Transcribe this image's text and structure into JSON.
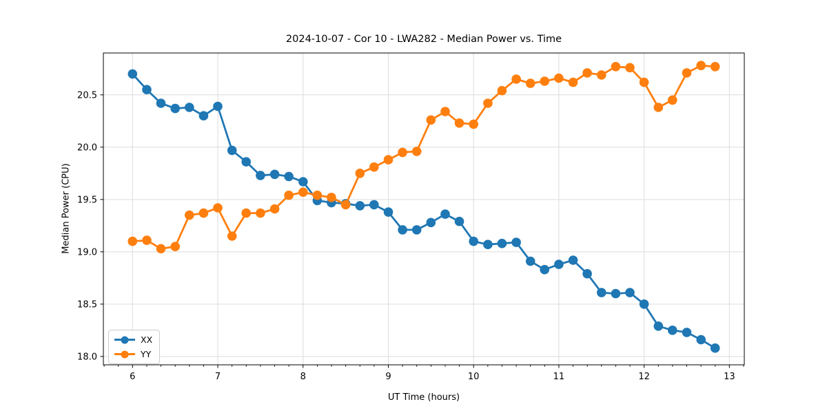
{
  "chart_data": {
    "type": "line",
    "title": "2024-10-07 - Cor 10 - LWA282 - Median Power vs. Time",
    "xlabel": "UT Time (hours)",
    "ylabel": "Median Power (CPU)",
    "xlim": [
      5.658,
      13.175
    ],
    "ylim": [
      17.92,
      20.9
    ],
    "x_ticks": [
      6,
      7,
      8,
      9,
      10,
      11,
      12,
      13
    ],
    "x_tick_labels": [
      "6",
      "7",
      "8",
      "9",
      "10",
      "11",
      "12",
      "13"
    ],
    "y_ticks": [
      18.0,
      18.5,
      19.0,
      19.5,
      20.0,
      20.5
    ],
    "y_tick_labels": [
      "18.0",
      "18.5",
      "19.0",
      "19.5",
      "20.0",
      "20.5"
    ],
    "x_minor_step": 0.16667,
    "grid": true,
    "grid_color": "#dcdcdc",
    "legend_position": "lower-left",
    "x": [
      6.0,
      6.167,
      6.333,
      6.5,
      6.667,
      6.833,
      7.0,
      7.167,
      7.333,
      7.5,
      7.667,
      7.833,
      8.0,
      8.167,
      8.333,
      8.5,
      8.667,
      8.833,
      9.0,
      9.167,
      9.333,
      9.5,
      9.667,
      9.833,
      10.0,
      10.167,
      10.333,
      10.5,
      10.667,
      10.833,
      11.0,
      11.167,
      11.333,
      11.5,
      11.667,
      11.833,
      12.0,
      12.167,
      12.333,
      12.5,
      12.667,
      12.833
    ],
    "series": [
      {
        "name": "XX",
        "color": "#1f77b4",
        "values": [
          20.7,
          20.55,
          20.42,
          20.37,
          20.38,
          20.3,
          20.39,
          19.97,
          19.86,
          19.73,
          19.74,
          19.72,
          19.67,
          19.49,
          19.47,
          19.46,
          19.44,
          19.45,
          19.38,
          19.21,
          19.21,
          19.28,
          19.36,
          19.29,
          19.1,
          19.07,
          19.08,
          19.09,
          18.91,
          18.83,
          18.88,
          18.92,
          18.79,
          18.61,
          18.6,
          18.61,
          18.5,
          18.29,
          18.25,
          18.23,
          18.16,
          18.08
        ]
      },
      {
        "name": "YY",
        "color": "#ff7f0e",
        "values": [
          19.1,
          19.11,
          19.03,
          19.05,
          19.35,
          19.37,
          19.42,
          19.15,
          19.37,
          19.37,
          19.41,
          19.54,
          19.57,
          19.54,
          19.52,
          19.45,
          19.75,
          19.81,
          19.88,
          19.95,
          19.96,
          20.26,
          20.34,
          20.23,
          20.22,
          20.42,
          20.54,
          20.65,
          20.61,
          20.63,
          20.66,
          20.62,
          20.71,
          20.69,
          20.77,
          20.76,
          20.62,
          20.38,
          20.45,
          20.71,
          20.78,
          20.77
        ]
      }
    ]
  }
}
